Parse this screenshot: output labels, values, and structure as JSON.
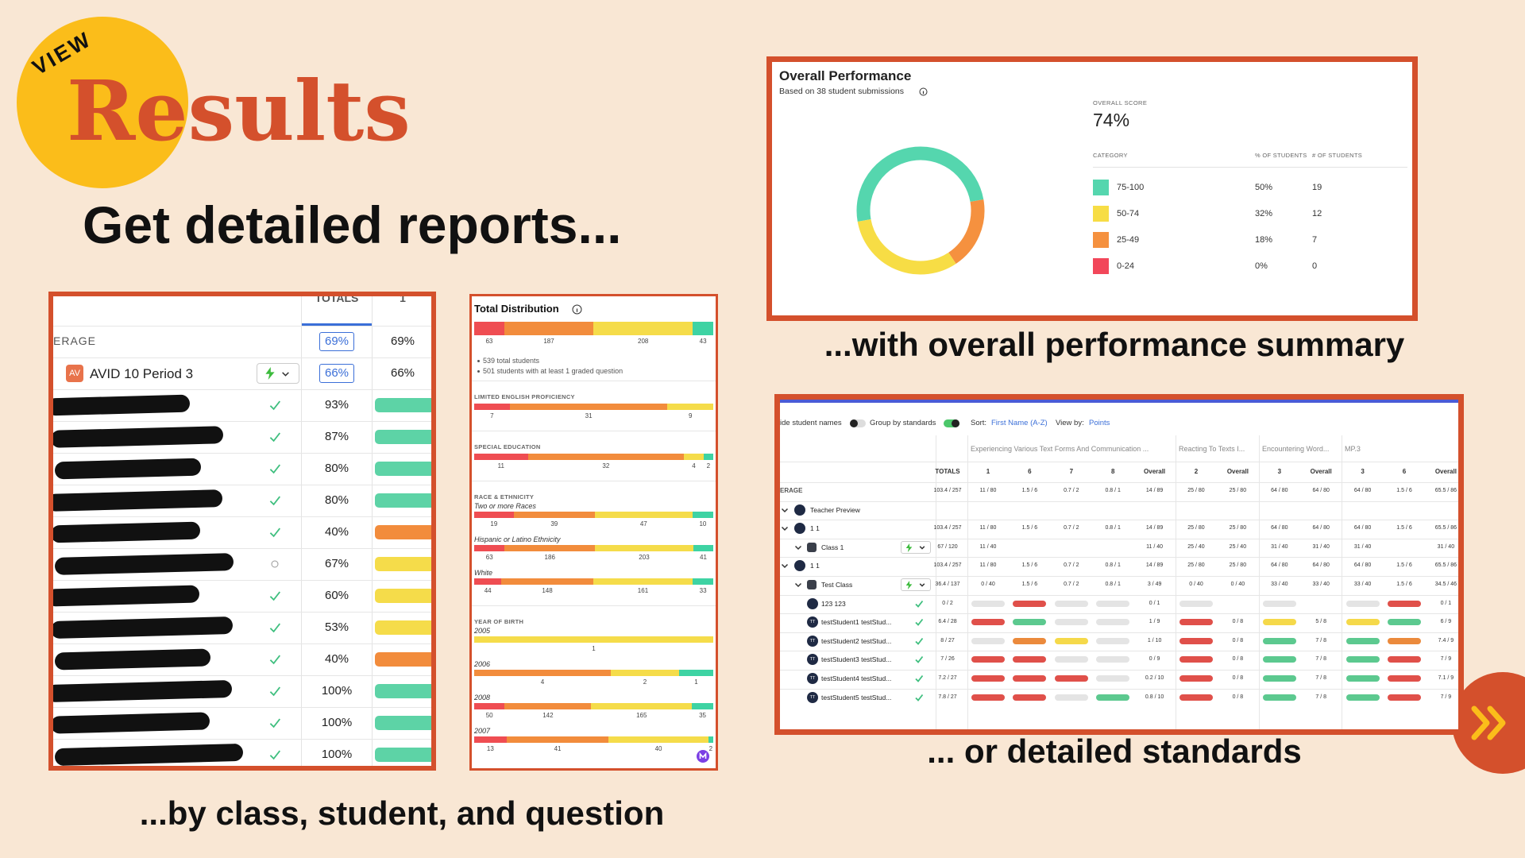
{
  "header": {
    "badge": "VIEW",
    "title": "Results",
    "subtitle": "Get detailed reports..."
  },
  "captions": {
    "class": "...by class, student, and question",
    "overall": "...with overall performance summary",
    "standards": "... or detailed standards"
  },
  "class_report": {
    "columns": [
      "TOTALS",
      "1"
    ],
    "average": {
      "label": "ERAGE",
      "values": [
        "69%",
        "69%"
      ]
    },
    "class_row": {
      "avatar": "AV",
      "name": "AVID 10 Period 3",
      "values": [
        "66%",
        "66%"
      ]
    },
    "students": [
      {
        "score": "93%",
        "color": "#5dd3a6",
        "status": "check"
      },
      {
        "score": "87%",
        "color": "#5dd3a6",
        "status": "check"
      },
      {
        "score": "80%",
        "color": "#5dd3a6",
        "status": "check"
      },
      {
        "score": "80%",
        "color": "#5dd3a6",
        "status": "check"
      },
      {
        "score": "40%",
        "color": "#f28c3c",
        "status": "check"
      },
      {
        "score": "67%",
        "color": "#f5dc4a",
        "status": "pending"
      },
      {
        "score": "60%",
        "color": "#f5dc4a",
        "status": "check"
      },
      {
        "score": "53%",
        "color": "#f5dc4a",
        "status": "check"
      },
      {
        "score": "40%",
        "color": "#f28c3c",
        "status": "check"
      },
      {
        "score": "100%",
        "color": "#5dd3a6",
        "status": "check"
      },
      {
        "score": "100%",
        "color": "#5dd3a6",
        "status": "check"
      },
      {
        "score": "100%",
        "color": "#5dd3a6",
        "status": "check"
      }
    ]
  },
  "distribution": {
    "title": "Total Distribution",
    "colors": [
      "#ef4d52",
      "#f28c3c",
      "#f5dc4a",
      "#3ed3a3"
    ],
    "total": {
      "values": [
        63,
        187,
        208,
        43
      ]
    },
    "notes": [
      "539 total students",
      "501 students with at least 1 graded question"
    ],
    "sections": [
      {
        "heading": "LIMITED ENGLISH PROFICIENCY",
        "groups": [
          {
            "values": [
              7,
              31,
              9
            ]
          }
        ]
      },
      {
        "heading": "SPECIAL EDUCATION",
        "groups": [
          {
            "values": [
              11,
              32,
              4,
              2
            ]
          }
        ]
      },
      {
        "heading": "RACE & ETHNICITY",
        "groups": [
          {
            "name": "Two or more Races",
            "values": [
              19,
              39,
              47,
              10
            ]
          },
          {
            "name": "Hispanic or Latino Ethnicity",
            "values": [
              63,
              186,
              203,
              41
            ]
          },
          {
            "name": "White",
            "values": [
              44,
              148,
              161,
              33
            ]
          }
        ]
      },
      {
        "heading": "YEAR OF BIRTH",
        "groups": [
          {
            "name": "2005",
            "values": [
              0,
              0,
              1,
              0
            ]
          },
          {
            "name": "2006",
            "values": [
              0,
              4,
              2,
              1
            ]
          },
          {
            "name": "2008",
            "values": [
              50,
              142,
              165,
              35
            ]
          },
          {
            "name": "2007",
            "values": [
              13,
              41,
              40,
              2
            ]
          }
        ]
      }
    ]
  },
  "overall": {
    "title": "Overall Performance",
    "subtitle": "Based on 38 student submissions",
    "score_label": "OVERALL SCORE",
    "score": "74%",
    "headers": [
      "CATEGORY",
      "% OF STUDENTS",
      "# OF STUDENTS"
    ],
    "categories": [
      "75-100",
      "50-74",
      "25-49",
      "0-24"
    ],
    "percents": [
      "50%",
      "32%",
      "18%",
      "0%"
    ],
    "counts": [
      19,
      12,
      7,
      0
    ],
    "colors": [
      "#55d6ae",
      "#f7dd45",
      "#f5913f",
      "#f2475a"
    ]
  },
  "standards": {
    "toolbar": {
      "hide_names": "ide student names",
      "group_by": "Group by standards",
      "sort_label": "Sort:",
      "sort_value": "First Name (A-Z)",
      "view_label": "View by:",
      "view_value": "Points"
    },
    "groups": [
      "Experiencing Various Text Forms And Communication ...",
      "Reacting To Texts I...",
      "Encountering Word...",
      "MP.3"
    ],
    "columns": [
      "TOTALS",
      "1",
      "6",
      "7",
      "8",
      "Overall",
      "2",
      "Overall",
      "3",
      "Overall",
      "3",
      "6",
      "Overall"
    ],
    "rows": [
      {
        "kind": "average",
        "label": "ERAGE",
        "total": "103.4 / 257",
        "cells": [
          "11 / 80",
          "1.5 / 6",
          "0.7 / 2",
          "0.8 / 1",
          "14 / 89",
          "25 / 80",
          "25 / 80",
          "64 / 80",
          "64 / 80",
          "64 / 80",
          "1.5 / 6",
          "65.5 / 86"
        ]
      },
      {
        "kind": "section",
        "label": "Teacher Preview"
      },
      {
        "kind": "section",
        "label": "1 1",
        "total": "103.4 / 257",
        "cells": [
          "11 / 80",
          "1.5 / 6",
          "0.7 / 2",
          "0.8 / 1",
          "14 / 89",
          "25 / 80",
          "25 / 80",
          "64 / 80",
          "64 / 80",
          "64 / 80",
          "1.5 / 6",
          "65.5 / 86"
        ]
      },
      {
        "kind": "class",
        "label": "Class 1",
        "total": "67 / 120",
        "cells": [
          "11 / 40",
          null,
          null,
          null,
          "11 / 40",
          "25 / 40",
          "25 / 40",
          "31 / 40",
          "31 / 40",
          "31 / 40",
          null,
          "31 / 40"
        ]
      },
      {
        "kind": "section",
        "label": "1 1",
        "total": "103.4 / 257",
        "cells": [
          "11 / 80",
          "1.5 / 6",
          "0.7 / 2",
          "0.8 / 1",
          "14 / 89",
          "25 / 80",
          "25 / 80",
          "64 / 80",
          "64 / 80",
          "64 / 80",
          "1.5 / 6",
          "65.5 / 86"
        ]
      },
      {
        "kind": "class",
        "label": "Test Class",
        "total": "36.4 / 137",
        "cells": [
          "0 / 40",
          "1.5 / 6",
          "0.7 / 2",
          "0.8 / 1",
          "3 / 49",
          "0 / 40",
          "0 / 40",
          "33 / 40",
          "33 / 40",
          "33 / 40",
          "1.5 / 6",
          "34.5 / 46"
        ]
      },
      {
        "kind": "student",
        "label": "123 123",
        "total": "0 / 2",
        "cells": [
          null,
          null,
          null,
          null,
          "0 / 1",
          null,
          null,
          null,
          null,
          null,
          null,
          "0 / 1"
        ],
        "bars": [
          "#e4e4e4",
          "#e0504a",
          "#e4e4e4",
          "#e4e4e4",
          null,
          "#e4e4e4",
          null,
          "#e4e4e4",
          null,
          "#e4e4e4",
          "#e0504a",
          null
        ]
      },
      {
        "kind": "student",
        "avatar": "TT",
        "label": "testStudent1 testStud...",
        "total": "6.4 / 28",
        "cells": [
          null,
          null,
          null,
          null,
          "1 / 9",
          null,
          "0 / 8",
          null,
          "5 / 8",
          null,
          null,
          "6 / 9"
        ],
        "bars": [
          "#e0504a",
          "#5cc98f",
          "#e4e4e4",
          "#e4e4e4",
          null,
          "#e0504a",
          null,
          "#f5d94a",
          null,
          "#f5d94a",
          "#5cc98f",
          null
        ]
      },
      {
        "kind": "student",
        "avatar": "TT",
        "label": "testStudent2 testStud...",
        "total": "8 / 27",
        "cells": [
          null,
          null,
          null,
          null,
          "1 / 10",
          null,
          "0 / 8",
          null,
          "7 / 8",
          null,
          null,
          "7.4 / 9"
        ],
        "bars": [
          "#e4e4e4",
          "#eb8a3c",
          "#f5d94a",
          "#e4e4e4",
          null,
          "#e0504a",
          null,
          "#5cc98f",
          null,
          "#5cc98f",
          "#eb8a3c",
          null
        ]
      },
      {
        "kind": "student",
        "avatar": "TT",
        "label": "testStudent3 testStud...",
        "total": "7 / 26",
        "cells": [
          null,
          null,
          null,
          null,
          "0 / 9",
          null,
          "0 / 8",
          null,
          "7 / 8",
          null,
          null,
          "7 / 9"
        ],
        "bars": [
          "#e0504a",
          "#e0504a",
          "#e4e4e4",
          "#e4e4e4",
          null,
          "#e0504a",
          null,
          "#5cc98f",
          null,
          "#5cc98f",
          "#e0504a",
          null
        ]
      },
      {
        "kind": "student",
        "avatar": "TT",
        "label": "testStudent4 testStud...",
        "total": "7.2 / 27",
        "cells": [
          null,
          null,
          null,
          null,
          "0.2 / 10",
          null,
          "0 / 8",
          null,
          "7 / 8",
          null,
          null,
          "7.1 / 9"
        ],
        "bars": [
          "#e0504a",
          "#e0504a",
          "#e0504a",
          "#e4e4e4",
          null,
          "#e0504a",
          null,
          "#5cc98f",
          null,
          "#5cc98f",
          "#e0504a",
          null
        ]
      },
      {
        "kind": "student",
        "avatar": "TT",
        "label": "testStudent5 testStud...",
        "total": "7.8 / 27",
        "cells": [
          null,
          null,
          null,
          null,
          "0.8 / 10",
          null,
          "0 / 8",
          null,
          "7 / 8",
          null,
          null,
          "7 / 9"
        ],
        "bars": [
          "#e0504a",
          "#e0504a",
          "#e4e4e4",
          "#5cc98f",
          null,
          "#e0504a",
          null,
          "#5cc98f",
          null,
          "#5cc98f",
          "#e0504a",
          null
        ]
      }
    ]
  }
}
